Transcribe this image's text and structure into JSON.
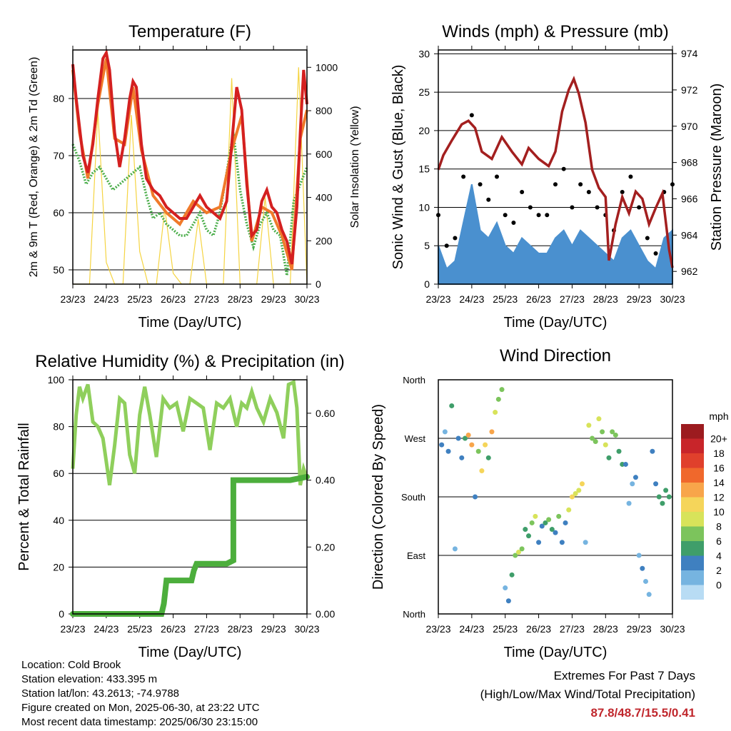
{
  "chart_data": [
    {
      "type": "line",
      "title": "Temperature (F)",
      "xlabel": "Time (Day/UTC)",
      "ylabel": "2m & 9m T (Red, Orange) & 2m Td (Green)",
      "y2label": "Solar Insolation (Yellow)",
      "x_ticks": [
        "23/23",
        "24/23",
        "25/23",
        "26/23",
        "27/23",
        "28/23",
        "29/23",
        "30/23"
      ],
      "xlim": [
        0,
        7
      ],
      "ylim": [
        47.5,
        88.5
      ],
      "y_ticks": [
        50,
        60,
        70,
        80
      ],
      "y2lim": [
        0,
        1080
      ],
      "y2_ticks": [
        0,
        200,
        400,
        600,
        800,
        1000
      ],
      "grid": true,
      "series": [
        {
          "name": "2m T",
          "color": "#d42020",
          "x": [
            0,
            0.1,
            0.2,
            0.3,
            0.45,
            0.6,
            0.75,
            0.9,
            1.0,
            1.1,
            1.25,
            1.4,
            1.55,
            1.7,
            1.8,
            1.9,
            2.05,
            2.2,
            2.4,
            2.6,
            2.8,
            3.0,
            3.2,
            3.4,
            3.6,
            3.8,
            4.0,
            4.2,
            4.4,
            4.6,
            4.75,
            4.9,
            5.05,
            5.2,
            5.35,
            5.5,
            5.65,
            5.8,
            5.95,
            6.1,
            6.25,
            6.4,
            6.55,
            6.7,
            6.8,
            6.9,
            7.0
          ],
          "values": [
            86,
            80,
            75,
            70,
            67,
            72,
            80,
            87,
            88,
            85,
            74,
            68,
            73,
            80,
            83,
            82,
            72,
            66,
            64,
            63,
            61,
            60,
            59,
            59,
            61,
            63,
            61,
            60,
            59,
            62,
            72,
            82,
            78,
            65,
            56,
            57,
            62,
            64,
            61,
            60,
            57,
            55,
            51,
            61,
            74,
            85,
            79
          ]
        },
        {
          "name": "9m T",
          "color": "#f07a2a",
          "x": [
            0,
            0.2,
            0.45,
            0.75,
            1.0,
            1.25,
            1.55,
            1.8,
            2.05,
            2.4,
            2.8,
            3.2,
            3.6,
            4.0,
            4.4,
            4.75,
            5.05,
            5.35,
            5.65,
            5.95,
            6.25,
            6.55,
            6.8,
            7.0
          ],
          "values": [
            85,
            74,
            66,
            79,
            87,
            73,
            72,
            82,
            71,
            63,
            60,
            58,
            62,
            60,
            61,
            71,
            77,
            55,
            61,
            60,
            56,
            50,
            73,
            78
          ]
        },
        {
          "name": "2m Td",
          "color": "#4cae4c",
          "x": [
            0,
            0.2,
            0.4,
            0.6,
            0.8,
            1.0,
            1.2,
            1.4,
            1.6,
            1.8,
            2.0,
            2.2,
            2.4,
            2.6,
            2.8,
            3.0,
            3.2,
            3.4,
            3.6,
            3.8,
            4.0,
            4.2,
            4.4,
            4.6,
            4.8,
            5.0,
            5.2,
            5.4,
            5.6,
            5.8,
            6.0,
            6.2,
            6.4,
            6.6,
            6.8,
            7.0
          ],
          "values": [
            72,
            69,
            65,
            67,
            68,
            66,
            64,
            65,
            66,
            67,
            68,
            63,
            59,
            60,
            58,
            57,
            56,
            56,
            58,
            60,
            57,
            56,
            60,
            67,
            74,
            64,
            58,
            54,
            58,
            60,
            57,
            56,
            49,
            62,
            65,
            68
          ]
        },
        {
          "name": "Solar Insolation",
          "color": "#f5d442",
          "axis": "y2",
          "x": [
            0,
            0.5,
            0.75,
            1.0,
            1.25,
            1.5,
            1.75,
            2.0,
            2.25,
            2.5,
            2.75,
            3.0,
            3.25,
            3.5,
            3.75,
            4.0,
            4.25,
            4.5,
            4.75,
            5.0,
            5.25,
            5.5,
            5.75,
            6.0,
            6.25,
            6.5,
            6.75,
            7.0
          ],
          "values": [
            0,
            0,
            800,
            100,
            0,
            0,
            780,
            150,
            0,
            0,
            350,
            50,
            0,
            0,
            300,
            0,
            0,
            0,
            950,
            0,
            0,
            0,
            400,
            0,
            0,
            0,
            1000,
            0
          ]
        }
      ]
    },
    {
      "type": "scatter",
      "title": "Winds (mph) & Pressure (mb)",
      "xlabel": "Time (Day/UTC)",
      "ylabel": "Sonic Wind & Gust (Blue, Black)",
      "y2label": "Station Pressure (Maroon)",
      "x_ticks": [
        "23/23",
        "24/23",
        "25/23",
        "26/23",
        "27/23",
        "28/23",
        "29/23",
        "30/23"
      ],
      "xlim": [
        0,
        7
      ],
      "ylim": [
        0,
        30.5
      ],
      "y_ticks": [
        0,
        5,
        10,
        15,
        20,
        25,
        30
      ],
      "y2lim": [
        961.3,
        974.2
      ],
      "y2_ticks": [
        962,
        964,
        966,
        968,
        970,
        972,
        974
      ],
      "grid": true,
      "series": [
        {
          "name": "Sonic Wind",
          "color": "#4a90cf",
          "x": [
            0,
            0.25,
            0.5,
            0.75,
            1.0,
            1.25,
            1.5,
            1.75,
            2.0,
            2.25,
            2.5,
            2.75,
            3.0,
            3.25,
            3.5,
            3.75,
            4.0,
            4.25,
            4.5,
            4.75,
            5.0,
            5.25,
            5.5,
            5.75,
            6.0,
            6.25,
            6.5,
            6.75,
            7.0
          ],
          "values": [
            5,
            2,
            3,
            8,
            13,
            7,
            6,
            8,
            5,
            4,
            6,
            5,
            4,
            4,
            6,
            7,
            5,
            7,
            6,
            5,
            4,
            3,
            6,
            7,
            5,
            3,
            2,
            6,
            7
          ]
        },
        {
          "name": "Gust",
          "color": "#000000",
          "x": [
            0,
            0.25,
            0.5,
            0.75,
            1.0,
            1.25,
            1.5,
            1.75,
            2.0,
            2.25,
            2.5,
            2.75,
            3.0,
            3.25,
            3.5,
            3.75,
            4.0,
            4.25,
            4.5,
            4.75,
            5.0,
            5.25,
            5.5,
            5.75,
            6.0,
            6.25,
            6.5,
            6.75,
            7.0
          ],
          "values": [
            9,
            5,
            6,
            14,
            22,
            13,
            11,
            14,
            9,
            8,
            12,
            10,
            9,
            9,
            13,
            15,
            10,
            13,
            12,
            10,
            9,
            7,
            12,
            14,
            10,
            6,
            4,
            12,
            13
          ]
        },
        {
          "name": "Station Pressure",
          "color": "#a31f1f",
          "axis": "y2",
          "x": [
            0,
            0.15,
            0.4,
            0.7,
            0.9,
            1.1,
            1.3,
            1.6,
            1.9,
            2.2,
            2.5,
            2.7,
            3.0,
            3.3,
            3.5,
            3.7,
            3.9,
            4.05,
            4.2,
            4.4,
            4.6,
            4.8,
            5.0,
            5.1,
            5.3,
            5.5,
            5.7,
            5.9,
            6.1,
            6.3,
            6.5,
            6.7,
            6.9,
            7.0
          ],
          "values": [
            967.6,
            968.4,
            969.2,
            970.1,
            970.3,
            969.9,
            968.6,
            968.2,
            969.4,
            968.6,
            967.9,
            968.8,
            968.2,
            967.8,
            968.6,
            970.8,
            972.0,
            972.6,
            971.8,
            970.2,
            967.6,
            966.6,
            966.1,
            962.6,
            964.6,
            966.1,
            965.2,
            966.4,
            966.0,
            964.6,
            965.5,
            966.3,
            963.2,
            962.2
          ]
        }
      ]
    },
    {
      "type": "line",
      "title": "Relative Humidity (%) & Precipitation (in)",
      "xlabel": "Time (Day/UTC)",
      "ylabel": "Percent & Total Rainfall",
      "x_ticks": [
        "23/23",
        "24/23",
        "25/23",
        "26/23",
        "27/23",
        "28/23",
        "29/23",
        "30/23"
      ],
      "xlim": [
        0,
        7
      ],
      "ylim": [
        0,
        100
      ],
      "y_ticks": [
        0,
        20,
        40,
        60,
        80,
        100
      ],
      "y2lim": [
        0,
        0.7
      ],
      "y2_ticks": [
        "0.00",
        "0.20",
        "0.40",
        "0.60"
      ],
      "grid": true,
      "series": [
        {
          "name": "Relative Humidity",
          "color": "#8fcf5c",
          "x": [
            0,
            0.1,
            0.2,
            0.3,
            0.45,
            0.6,
            0.75,
            0.9,
            1.0,
            1.1,
            1.25,
            1.4,
            1.55,
            1.7,
            1.85,
            2.0,
            2.15,
            2.3,
            2.5,
            2.7,
            2.9,
            3.1,
            3.3,
            3.5,
            3.7,
            3.9,
            4.1,
            4.3,
            4.5,
            4.7,
            4.9,
            5.05,
            5.2,
            5.35,
            5.5,
            5.7,
            5.9,
            6.1,
            6.3,
            6.45,
            6.6,
            6.7,
            6.8,
            6.9,
            7.0
          ],
          "values": [
            62,
            85,
            97,
            92,
            98,
            82,
            80,
            75,
            65,
            55,
            72,
            92,
            90,
            68,
            60,
            85,
            97,
            85,
            67,
            92,
            88,
            90,
            78,
            92,
            90,
            88,
            70,
            90,
            88,
            92,
            80,
            90,
            88,
            95,
            88,
            82,
            92,
            86,
            75,
            98,
            99,
            88,
            55,
            62,
            58
          ]
        },
        {
          "name": "Total Rainfall",
          "color": "#4cae3c",
          "axis": "y2",
          "x": [
            0,
            0.5,
            1.0,
            1.5,
            2.0,
            2.5,
            2.65,
            2.72,
            2.8,
            3.0,
            3.3,
            3.55,
            3.62,
            3.7,
            4.0,
            4.3,
            4.6,
            4.8,
            4.8,
            4.8,
            4.8,
            4.85,
            5.0,
            5.5,
            6.0,
            6.5,
            7.0
          ],
          "values": [
            0,
            0,
            0,
            0,
            0,
            0,
            0,
            0.03,
            0.1,
            0.1,
            0.1,
            0.1,
            0.13,
            0.15,
            0.15,
            0.15,
            0.15,
            0.16,
            0.2,
            0.28,
            0.4,
            0.4,
            0.4,
            0.4,
            0.4,
            0.4,
            0.41
          ]
        }
      ]
    },
    {
      "type": "scatter",
      "title": "Wind Direction",
      "xlabel": "Time (Day/UTC)",
      "ylabel": "Direction (Colored By Speed)",
      "x_ticks": [
        "23/23",
        "24/23",
        "25/23",
        "26/23",
        "27/23",
        "28/23",
        "29/23",
        "30/23"
      ],
      "xlim": [
        0,
        7
      ],
      "ylim": [
        0,
        360
      ],
      "y_ticks": [
        "North",
        "East",
        "South",
        "West",
        "North"
      ],
      "grid": true,
      "legend": {
        "title": "mph",
        "position": "right",
        "labels": [
          "20+",
          "18",
          "16",
          "14",
          "12",
          "10",
          "8",
          "6",
          "4",
          "2",
          "0"
        ],
        "colors": [
          "#9c1b1f",
          "#c8252a",
          "#e0402c",
          "#f0682c",
          "#f8a54a",
          "#f5d55a",
          "#d8e35a",
          "#7cc45c",
          "#3f9e6a",
          "#3f80c0",
          "#76b4e0",
          "#b8dcf4"
        ]
      },
      "series": [
        {
          "name": "Direction",
          "x": [
            0.1,
            0.2,
            0.3,
            0.4,
            0.5,
            0.6,
            0.7,
            0.8,
            0.9,
            1.0,
            1.1,
            1.2,
            1.3,
            1.4,
            1.5,
            1.6,
            1.7,
            1.8,
            1.9,
            2.0,
            2.1,
            2.2,
            2.3,
            2.4,
            2.5,
            2.6,
            2.7,
            2.8,
            2.9,
            3.0,
            3.1,
            3.2,
            3.3,
            3.4,
            3.5,
            3.6,
            3.7,
            3.8,
            3.9,
            4.0,
            4.1,
            4.2,
            4.3,
            4.4,
            4.5,
            4.6,
            4.7,
            4.8,
            4.9,
            5.0,
            5.1,
            5.2,
            5.3,
            5.4,
            5.5,
            5.6,
            5.7,
            5.8,
            5.9,
            6.0,
            6.1,
            6.2,
            6.3,
            6.4,
            6.5,
            6.6,
            6.7,
            6.8,
            6.9
          ],
          "values": [
            260,
            280,
            250,
            320,
            100,
            270,
            240,
            270,
            275,
            260,
            180,
            250,
            220,
            260,
            240,
            280,
            310,
            330,
            345,
            40,
            20,
            60,
            90,
            95,
            100,
            130,
            120,
            140,
            150,
            110,
            135,
            140,
            145,
            130,
            125,
            150,
            110,
            140,
            160,
            180,
            185,
            190,
            200,
            110,
            290,
            270,
            265,
            300,
            280,
            260,
            240,
            280,
            275,
            250,
            230,
            230,
            170,
            200,
            210,
            90,
            70,
            50,
            30,
            250,
            200,
            180,
            170,
            190,
            180
          ],
          "speeds": [
            3,
            2,
            4,
            5,
            1,
            4,
            3,
            6,
            14,
            13,
            4,
            8,
            11,
            12,
            5,
            13,
            10,
            8,
            7,
            2,
            4,
            6,
            8,
            9,
            7,
            5,
            6,
            8,
            9,
            3,
            4,
            6,
            7,
            5,
            4,
            8,
            3,
            4,
            10,
            11,
            10,
            9,
            12,
            2,
            9,
            8,
            7,
            10,
            8,
            9,
            6,
            8,
            7,
            5,
            6,
            4,
            1,
            2,
            3,
            2,
            3,
            2,
            1,
            3,
            4,
            5,
            6,
            6,
            5
          ]
        }
      ]
    }
  ],
  "info": {
    "location": "Location: Cold Brook",
    "elevation": "Station elevation: 433.395 m",
    "latlon": "Station lat/lon: 43.2613; -74.9788",
    "created": "Figure created on Mon, 2025-06-30, at 23:22 UTC",
    "recent": "Most recent data timestamp: 2025/06/30 23:15:00"
  },
  "extremes": {
    "title": "Extremes For Past 7 Days",
    "subtitle": "(High/Low/Max Wind/Total Precipitation)",
    "values": "87.8/48.7/15.5/0.41"
  }
}
